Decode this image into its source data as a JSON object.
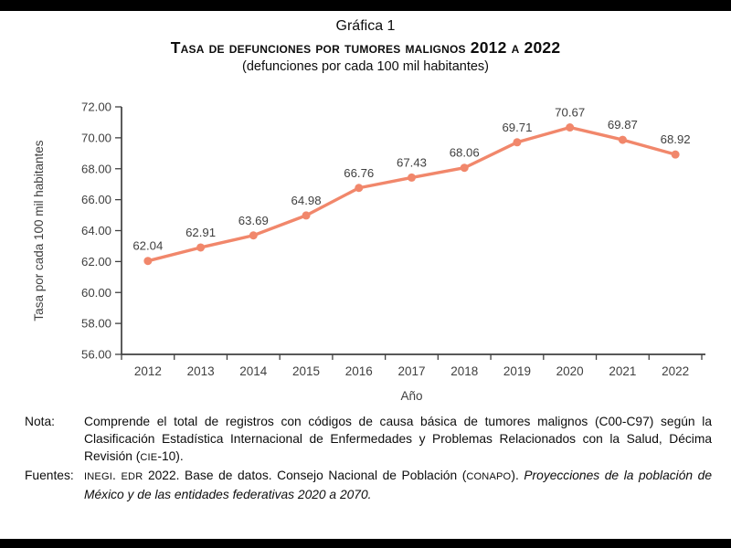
{
  "header": {
    "figure_label": "Gráfica 1",
    "title": "Tasa de defunciones por tumores malignos 2012 a 2022",
    "subtitle": "(defunciones por cada 100 mil habitantes)"
  },
  "chart_data": {
    "type": "line",
    "categories": [
      "2012",
      "2013",
      "2014",
      "2015",
      "2016",
      "2017",
      "2018",
      "2019",
      "2020",
      "2021",
      "2022"
    ],
    "values": [
      62.04,
      62.91,
      63.69,
      64.98,
      66.76,
      67.43,
      68.06,
      69.71,
      70.67,
      69.87,
      68.92
    ],
    "data_labels": [
      "62.04",
      "62.91",
      "63.69",
      "64.98",
      "66.76",
      "67.43",
      "68.06",
      "69.71",
      "70.67",
      "69.87",
      "68.92"
    ],
    "xlabel": "Año",
    "ylabel": "Tasa por cada 100 mil habitantes",
    "ylim": [
      56,
      72
    ],
    "ytick_step": 2,
    "ytick_format_decimals": 2,
    "grid": false,
    "legend": "none",
    "line_color": "#F1876B",
    "marker_color": "#F1876B",
    "axis_color": "#404040",
    "tick_label_color": "#404040",
    "data_label_color": "#3f3f3f"
  },
  "notes": {
    "nota_label": "Nota:",
    "nota_segments": [
      {
        "t": "Comprende el total de registros con códigos de causa básica de tumores malignos (C00-C97) según la Clasificación Estadística Internacional de Enfermedades y Problemas Relacionados con la Salud, Décima Revisión ("
      },
      {
        "t": "CIE",
        "sc": true
      },
      {
        "t": "-10)."
      }
    ],
    "fuentes_label": "Fuentes:",
    "fuentes_segments": [
      {
        "t": "INEGI",
        "sc": true
      },
      {
        "t": ". "
      },
      {
        "t": "EDR",
        "sc": true
      },
      {
        "t": " 2022. Base de datos. Consejo Nacional de Población ("
      },
      {
        "t": "CONAPO",
        "sc": true
      },
      {
        "t": "). "
      },
      {
        "t": "Proyecciones de la población de México y de las entidades federativas 2020 a 2070.",
        "it": true
      }
    ]
  }
}
